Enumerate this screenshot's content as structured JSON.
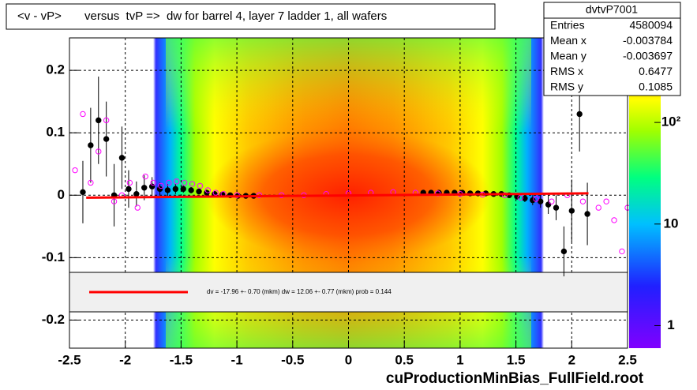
{
  "chart_data": {
    "type": "heatmap",
    "title": "<v - vP>       versus  tvP =>  dw for barrel 4, layer 7 ladder 1, all wafers",
    "footer": "cuProductionMinBias_FullField.root",
    "xlim": [
      -2.5,
      2.5
    ],
    "ylim": [
      -0.245,
      0.252
    ],
    "xticks": [
      -2.5,
      -2,
      -1.5,
      -1,
      -0.5,
      0,
      0.5,
      1,
      1.5,
      2,
      2.5
    ],
    "yticks": [
      -0.2,
      -0.1,
      0,
      0.1,
      0.2
    ],
    "zlim": [
      0.6,
      680
    ],
    "zscale": "log",
    "zticks": [
      1,
      10,
      {
        "value": 100,
        "label": "10²"
      }
    ],
    "grid": true,
    "stats": {
      "title": "dvtvP7001",
      "rows": [
        [
          "Entries",
          4580094
        ],
        [
          "Mean x",
          -0.003784
        ],
        [
          "Mean y",
          -0.003697
        ],
        [
          "RMS x",
          0.6477
        ],
        [
          "RMS y",
          0.1085
        ]
      ]
    },
    "legend_text": "dv =  -17.96 +-  0.70 (mkm) dw =   12.06 +-  0.77 (mkm) prob = 0.144",
    "series": [
      {
        "type": "scatter",
        "marker": "filled",
        "color": "#000000",
        "x": [
          -2.38,
          -2.31,
          -2.24,
          -2.17,
          -2.1,
          -2.03,
          -1.97,
          -1.9,
          -1.83,
          -1.76,
          -1.69,
          -1.62,
          -1.55,
          -1.48,
          -1.41,
          -1.34,
          -1.27,
          -1.2,
          -1.13,
          -1.06,
          -0.99,
          -0.92,
          -0.85,
          0.67,
          0.74,
          0.81,
          0.88,
          0.95,
          1.02,
          1.09,
          1.16,
          1.23,
          1.3,
          1.37,
          1.44,
          1.51,
          1.58,
          1.65,
          1.72,
          1.79,
          1.86,
          1.93,
          2.0,
          2.07,
          2.14
        ],
        "values": [
          0.005,
          0.08,
          0.12,
          0.09,
          0.0,
          0.06,
          0.01,
          0.002,
          0.012,
          0.014,
          0.01,
          0.008,
          0.01,
          0.01,
          0.008,
          0.006,
          0.004,
          0.002,
          0.001,
          0.0,
          -0.001,
          -0.001,
          -0.001,
          0.004,
          0.004,
          0.004,
          0.004,
          0.004,
          0.004,
          0.003,
          0.003,
          0.003,
          0.002,
          0.002,
          0.0,
          -0.002,
          -0.005,
          -0.008,
          -0.01,
          -0.015,
          -0.02,
          -0.09,
          -0.025,
          0.13,
          -0.03
        ],
        "errors": [
          0.05,
          0.06,
          0.07,
          0.06,
          0.05,
          0.05,
          0.03,
          0.02,
          0.02,
          0.015,
          0.01,
          0.01,
          0.008,
          0.006,
          0.005,
          0.004,
          0.003,
          0.003,
          0.003,
          0.002,
          0.002,
          0.002,
          0.002,
          0.002,
          0.002,
          0.002,
          0.002,
          0.002,
          0.002,
          0.002,
          0.002,
          0.003,
          0.003,
          0.003,
          0.004,
          0.005,
          0.006,
          0.008,
          0.01,
          0.015,
          0.02,
          0.04,
          0.05,
          0.06,
          0.05
        ]
      },
      {
        "type": "scatter",
        "marker": "open",
        "color": "#ff00ff",
        "x": [
          -2.45,
          -2.38,
          -2.31,
          -2.24,
          -2.17,
          -2.1,
          -2.03,
          -1.96,
          -1.89,
          -1.82,
          -1.75,
          -1.68,
          -1.61,
          -1.54,
          -1.47,
          -1.4,
          -1.33,
          -1.26,
          -1.19,
          -1.12,
          -1.0,
          -0.8,
          -0.6,
          -0.4,
          -0.2,
          0.0,
          0.2,
          0.4,
          0.6,
          0.8,
          1.0,
          1.2,
          1.4,
          1.54,
          1.68,
          1.82,
          1.96,
          2.1,
          2.24,
          2.31,
          2.38,
          2.45,
          2.5
        ],
        "values": [
          0.04,
          0.13,
          0.02,
          0.07,
          0.12,
          -0.01,
          0.0,
          0.02,
          -0.02,
          0.03,
          0.02,
          0.015,
          0.02,
          0.022,
          0.02,
          0.018,
          0.015,
          0.008,
          0.004,
          0.002,
          0.0,
          0.0,
          0.0,
          0.0,
          0.002,
          0.003,
          0.004,
          0.005,
          0.004,
          0.003,
          0.002,
          0.001,
          0.0,
          -0.004,
          -0.006,
          -0.01,
          0.0,
          -0.01,
          -0.02,
          -0.01,
          -0.04,
          -0.09,
          -0.02
        ]
      },
      {
        "type": "line",
        "color": "#ff0000",
        "x": [
          -2.35,
          2.15
        ],
        "values": [
          -0.004,
          0.003
        ]
      }
    ]
  }
}
